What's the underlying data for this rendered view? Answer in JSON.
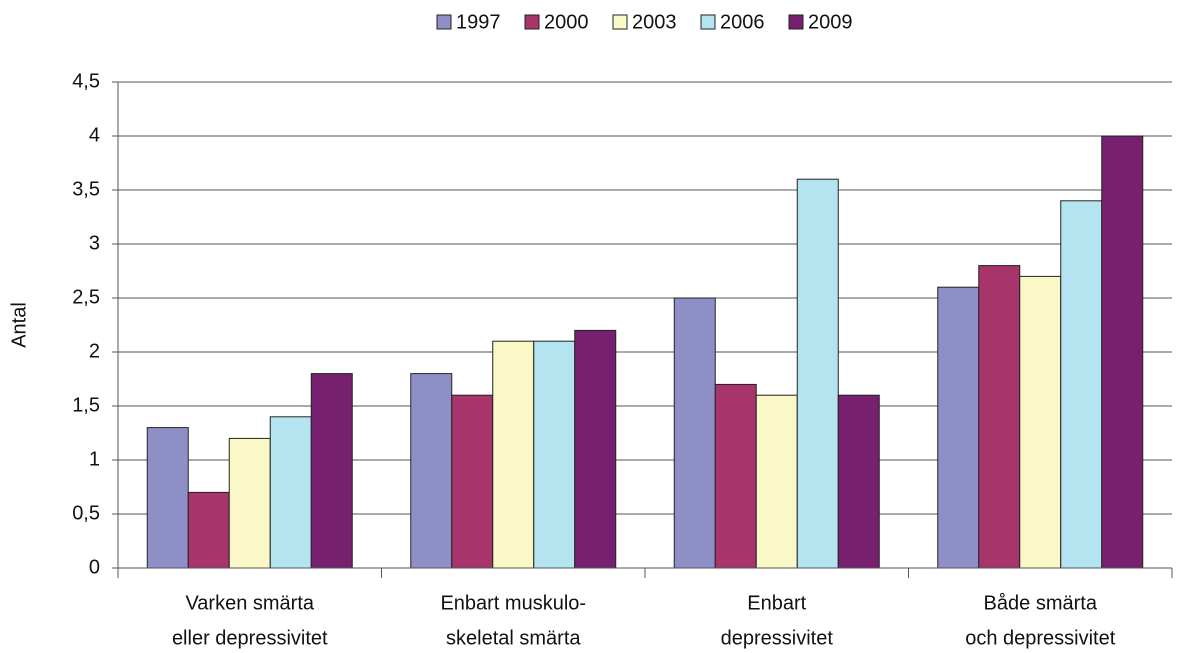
{
  "chart_data": {
    "type": "bar",
    "y_label": "Antal",
    "categories": [
      [
        "Varken smärta",
        "eller depressivitet"
      ],
      [
        "Enbart muskulo-",
        "skeletal smärta"
      ],
      [
        "Enbart",
        "depressivitet"
      ],
      [
        "Både smärta",
        "och depressivitet"
      ]
    ],
    "series": [
      {
        "name": "1997",
        "color": "#8f8fc8",
        "values": [
          1.3,
          1.8,
          2.5,
          2.6
        ]
      },
      {
        "name": "2000",
        "color": "#a8346c",
        "values": [
          0.7,
          1.6,
          1.7,
          2.8
        ]
      },
      {
        "name": "2003",
        "color": "#fbf8c8",
        "values": [
          1.2,
          2.1,
          1.6,
          2.7
        ]
      },
      {
        "name": "2006",
        "color": "#b4e4f0",
        "values": [
          1.4,
          2.1,
          3.6,
          3.4
        ]
      },
      {
        "name": "2009",
        "color": "#772070",
        "values": [
          1.8,
          2.2,
          1.6,
          4.0
        ]
      }
    ],
    "ylim": [
      0,
      4.5
    ],
    "yticks": [
      0,
      {
        "value": 0.5,
        "label": "0,5"
      },
      1,
      {
        "value": 1.5,
        "label": "1,5"
      },
      2,
      {
        "value": 2.5,
        "label": "2,5"
      },
      3,
      {
        "value": 3.5,
        "label": "3,5"
      },
      4,
      {
        "value": 4.5,
        "label": "4,5"
      }
    ],
    "grid": true,
    "legend": "top"
  }
}
